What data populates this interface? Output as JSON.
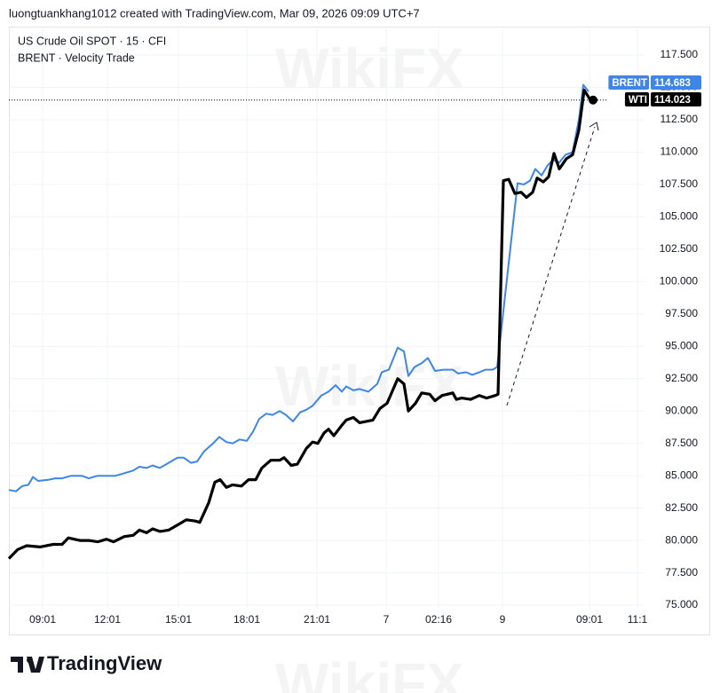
{
  "header": "luongtuankhang1012 created with TradingView.com, Mar 09, 2026 09:09 UTC+7",
  "footer_brand": "TradingView",
  "watermark": "WikiFX",
  "chart_data": {
    "type": "line",
    "title": "US Crude Oil SPOT · 15 · CFI",
    "subtitle": "BRENT · Velocity Trade",
    "xlim": [
      0,
      715
    ],
    "xticks": [
      {
        "value": 38,
        "label": "09:01"
      },
      {
        "value": 111,
        "label": "12:01"
      },
      {
        "value": 191,
        "label": "15:01"
      },
      {
        "value": 268,
        "label": "18:01"
      },
      {
        "value": 347,
        "label": "21:01"
      },
      {
        "value": 425,
        "label": "7"
      },
      {
        "value": 484,
        "label": "02:16"
      },
      {
        "value": 556,
        "label": "9"
      },
      {
        "value": 654,
        "label": "09:01"
      },
      {
        "value": 708,
        "label": "11:1"
      }
    ],
    "ylim": [
      74.73,
      119.56
    ],
    "yticks": [
      {
        "value": 75,
        "label": "75.000"
      },
      {
        "value": 77.5,
        "label": "77.500"
      },
      {
        "value": 80,
        "label": "80.000"
      },
      {
        "value": 82.5,
        "label": "82.500"
      },
      {
        "value": 85,
        "label": "85.000"
      },
      {
        "value": 87.5,
        "label": "87.500"
      },
      {
        "value": 90,
        "label": "90.000"
      },
      {
        "value": 92.5,
        "label": "92.500"
      },
      {
        "value": 95,
        "label": "95.000"
      },
      {
        "value": 97.5,
        "label": "97.500"
      },
      {
        "value": 100,
        "label": "100.000"
      },
      {
        "value": 102.5,
        "label": "102.500"
      },
      {
        "value": 105,
        "label": "105.000"
      },
      {
        "value": 107.5,
        "label": "107.500"
      },
      {
        "value": 110,
        "label": "110.000"
      },
      {
        "value": 112.5,
        "label": "112.500"
      },
      {
        "value": 115,
        "label": "115.000"
      },
      {
        "value": 117.5,
        "label": "117.500"
      }
    ],
    "grid": true,
    "series": [
      {
        "name": "BRENT",
        "color": "#3d86e6",
        "width": 2,
        "x": [
          0,
          8,
          15,
          22,
          27,
          33,
          45,
          52,
          60,
          70,
          82,
          90,
          100,
          110,
          120,
          130,
          140,
          147,
          155,
          162,
          170,
          180,
          190,
          197,
          205,
          212,
          220,
          230,
          237,
          245,
          252,
          260,
          268,
          275,
          282,
          290,
          297,
          305,
          312,
          320,
          328,
          335,
          342,
          352,
          360,
          368,
          375,
          380,
          388,
          395,
          405,
          415,
          420,
          428,
          438,
          445,
          450,
          457,
          465,
          472,
          480,
          490,
          500,
          506,
          515,
          522,
          530,
          537,
          545,
          550,
          573,
          580,
          587,
          593,
          600,
          607,
          613,
          620,
          627,
          635,
          642,
          647,
          653
        ],
        "values": [
          83.9,
          83.8,
          84.2,
          84.3,
          84.9,
          84.6,
          84.7,
          84.8,
          84.8,
          85.0,
          85.0,
          84.8,
          85.0,
          85.0,
          85.0,
          85.2,
          85.4,
          85.7,
          85.6,
          85.8,
          85.6,
          86.0,
          86.4,
          86.4,
          86.0,
          86.1,
          86.9,
          87.5,
          88.0,
          87.6,
          87.5,
          87.8,
          87.7,
          88.4,
          89.4,
          89.8,
          89.7,
          90.0,
          89.7,
          89.2,
          89.9,
          90.1,
          90.4,
          91.2,
          91.5,
          92.0,
          91.5,
          91.9,
          91.6,
          91.7,
          91.5,
          92.1,
          93.0,
          93.2,
          94.9,
          94.6,
          92.7,
          93.4,
          93.7,
          94.1,
          93.1,
          93.2,
          93.2,
          92.9,
          93.0,
          92.8,
          93.0,
          93.2,
          93.2,
          93.4,
          107.6,
          107.5,
          107.8,
          108.7,
          108.2,
          109.0,
          109.4,
          109.2,
          109.8,
          110.0,
          112.5,
          115.2,
          114.683
        ]
      },
      {
        "name": "WTI",
        "color": "#000000",
        "width": 3.2,
        "x": [
          0,
          10,
          20,
          35,
          50,
          60,
          67,
          80,
          90,
          100,
          110,
          118,
          130,
          140,
          147,
          155,
          162,
          170,
          180,
          190,
          200,
          210,
          215,
          225,
          232,
          238,
          245,
          252,
          262,
          270,
          278,
          285,
          295,
          305,
          310,
          318,
          325,
          335,
          342,
          348,
          355,
          360,
          366,
          375,
          380,
          388,
          395,
          410,
          418,
          426,
          438,
          445,
          450,
          458,
          465,
          474,
          480,
          488,
          500,
          504,
          510,
          520,
          530,
          538,
          548,
          551,
          557,
          563,
          570,
          577,
          583,
          590,
          595,
          602,
          608,
          614,
          620,
          628,
          635,
          642,
          648,
          655
        ],
        "values": [
          78.6,
          79.3,
          79.6,
          79.5,
          79.7,
          79.7,
          80.2,
          80.0,
          80.0,
          79.9,
          80.1,
          79.9,
          80.3,
          80.4,
          80.8,
          80.6,
          80.9,
          80.7,
          80.8,
          81.2,
          81.6,
          81.5,
          81.4,
          82.9,
          84.5,
          84.7,
          84.1,
          84.3,
          84.2,
          84.7,
          84.7,
          85.6,
          86.2,
          86.2,
          86.4,
          85.8,
          85.9,
          87.1,
          87.6,
          87.5,
          88.3,
          88.6,
          88.1,
          88.9,
          89.3,
          89.5,
          89.1,
          89.3,
          90.2,
          90.6,
          92.5,
          92.1,
          90.0,
          90.6,
          91.4,
          91.3,
          90.8,
          91.2,
          91.4,
          90.9,
          91.0,
          90.9,
          91.2,
          91.0,
          91.2,
          91.3,
          107.8,
          107.9,
          106.8,
          106.9,
          106.5,
          106.9,
          108.0,
          107.7,
          108.1,
          109.9,
          108.7,
          109.5,
          109.8,
          111.7,
          114.8,
          114.023
        ]
      }
    ]
  }
}
